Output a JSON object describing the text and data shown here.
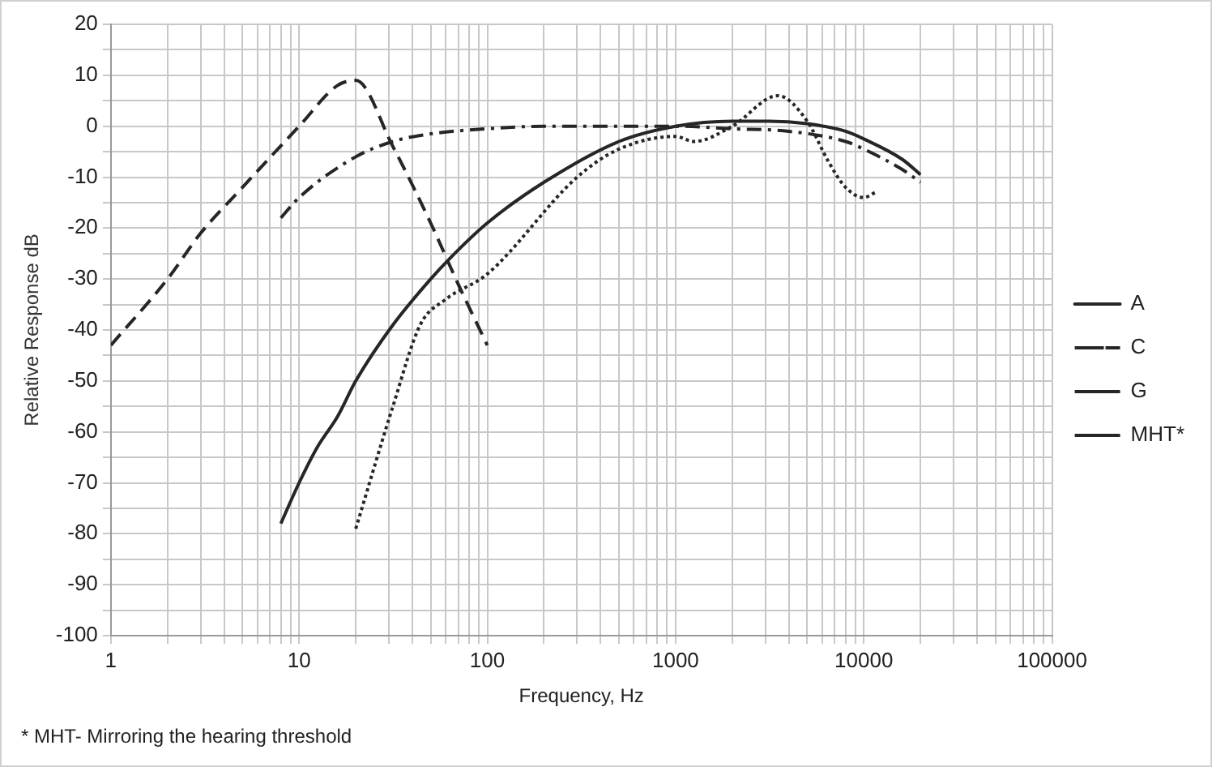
{
  "chart_data": {
    "type": "line",
    "xlabel": "Frequency, Hz",
    "ylabel": "Relative Response dB",
    "log": "x",
    "grid": true,
    "legend": "right",
    "marker": "none",
    "xlim": [
      1,
      100000
    ],
    "ylim": [
      -100,
      20
    ],
    "xticks": [
      1,
      {
        "value": 2,
        "label": null
      },
      {
        "value": 3,
        "label": null
      },
      {
        "value": 4,
        "label": null
      },
      {
        "value": 5,
        "label": null
      },
      {
        "value": 6,
        "label": null
      },
      {
        "value": 7,
        "label": null
      },
      {
        "value": 8,
        "label": null
      },
      {
        "value": 9,
        "label": null
      },
      10,
      {
        "value": 20,
        "label": null
      },
      {
        "value": 30,
        "label": null
      },
      {
        "value": 40,
        "label": null
      },
      {
        "value": 50,
        "label": null
      },
      {
        "value": 60,
        "label": null
      },
      {
        "value": 70,
        "label": null
      },
      {
        "value": 80,
        "label": null
      },
      {
        "value": 90,
        "label": null
      },
      100,
      {
        "value": 200,
        "label": null
      },
      {
        "value": 300,
        "label": null
      },
      {
        "value": 400,
        "label": null
      },
      {
        "value": 500,
        "label": null
      },
      {
        "value": 600,
        "label": null
      },
      {
        "value": 700,
        "label": null
      },
      {
        "value": 800,
        "label": null
      },
      {
        "value": 900,
        "label": null
      },
      1000,
      {
        "value": 2000,
        "label": null
      },
      {
        "value": 3000,
        "label": null
      },
      {
        "value": 4000,
        "label": null
      },
      {
        "value": 5000,
        "label": null
      },
      {
        "value": 6000,
        "label": null
      },
      {
        "value": 7000,
        "label": null
      },
      {
        "value": 8000,
        "label": null
      },
      {
        "value": 9000,
        "label": null
      },
      10000,
      {
        "value": 20000,
        "label": null
      },
      {
        "value": 30000,
        "label": null
      },
      {
        "value": 40000,
        "label": null
      },
      {
        "value": 50000,
        "label": null
      },
      {
        "value": 60000,
        "label": null
      },
      {
        "value": 70000,
        "label": null
      },
      {
        "value": 80000,
        "label": null
      },
      {
        "value": 90000,
        "label": null
      },
      100000
    ],
    "yticks": [
      -100,
      {
        "value": -95,
        "label": null
      },
      -90,
      {
        "value": -85,
        "label": null
      },
      -80,
      {
        "value": -75,
        "label": null
      },
      -70,
      {
        "value": -65,
        "label": null
      },
      -60,
      {
        "value": -55,
        "label": null
      },
      -50,
      {
        "value": -45,
        "label": null
      },
      -40,
      {
        "value": -35,
        "label": null
      },
      -30,
      {
        "value": -25,
        "label": null
      },
      -20,
      {
        "value": -15,
        "label": null
      },
      -10,
      {
        "value": -5,
        "label": null
      },
      0,
      {
        "value": 5,
        "label": null
      },
      10,
      {
        "value": 15,
        "label": null
      },
      20
    ],
    "series": [
      {
        "name": "A",
        "color": "#262626",
        "line_style": "solid",
        "x": [
          8,
          10,
          12.5,
          16,
          20,
          31.5,
          50,
          63,
          100,
          200,
          500,
          1000,
          2000,
          3150,
          5000,
          8000,
          10000,
          16000,
          20000
        ],
        "values": [
          -78,
          -70,
          -63,
          -57,
          -50,
          -39,
          -30,
          -26,
          -19,
          -11,
          -3,
          0,
          1,
          1,
          0.5,
          -1,
          -2.5,
          -6.5,
          -9.5
        ]
      },
      {
        "name": "C",
        "color": "#262626",
        "line_style": "dashdot",
        "x": [
          8,
          10,
          20,
          31.5,
          50,
          100,
          200,
          1000,
          2000,
          4000,
          8000,
          10000,
          16000,
          20000
        ],
        "values": [
          -18,
          -14,
          -6,
          -3,
          -1.5,
          -0.5,
          0,
          0,
          -0.5,
          -1,
          -3,
          -4.5,
          -8.5,
          -11
        ]
      },
      {
        "name": "G",
        "color": "#262626",
        "line_style": "dashed",
        "x": [
          1,
          2,
          3,
          5,
          10,
          16,
          20,
          31.5,
          50,
          70,
          100
        ],
        "values": [
          -43,
          -30,
          -21,
          -12,
          0,
          8,
          9,
          -4,
          -19,
          -31,
          -43
        ]
      },
      {
        "name": "MHT*",
        "color": "#262626",
        "line_style": "dotted",
        "x": [
          20,
          31.5,
          44,
          60,
          100,
          300,
          500,
          1000,
          1250,
          2000,
          3500,
          5000,
          6500,
          8000,
          10000,
          11500
        ],
        "values": [
          -79,
          -55,
          -39,
          -34,
          -29,
          -10,
          -4.5,
          -2,
          -3,
          0,
          6,
          1,
          -7,
          -12,
          -14,
          -13
        ]
      }
    ],
    "annotations": [
      "* MHT- Mirroring the hearing threshold"
    ]
  }
}
